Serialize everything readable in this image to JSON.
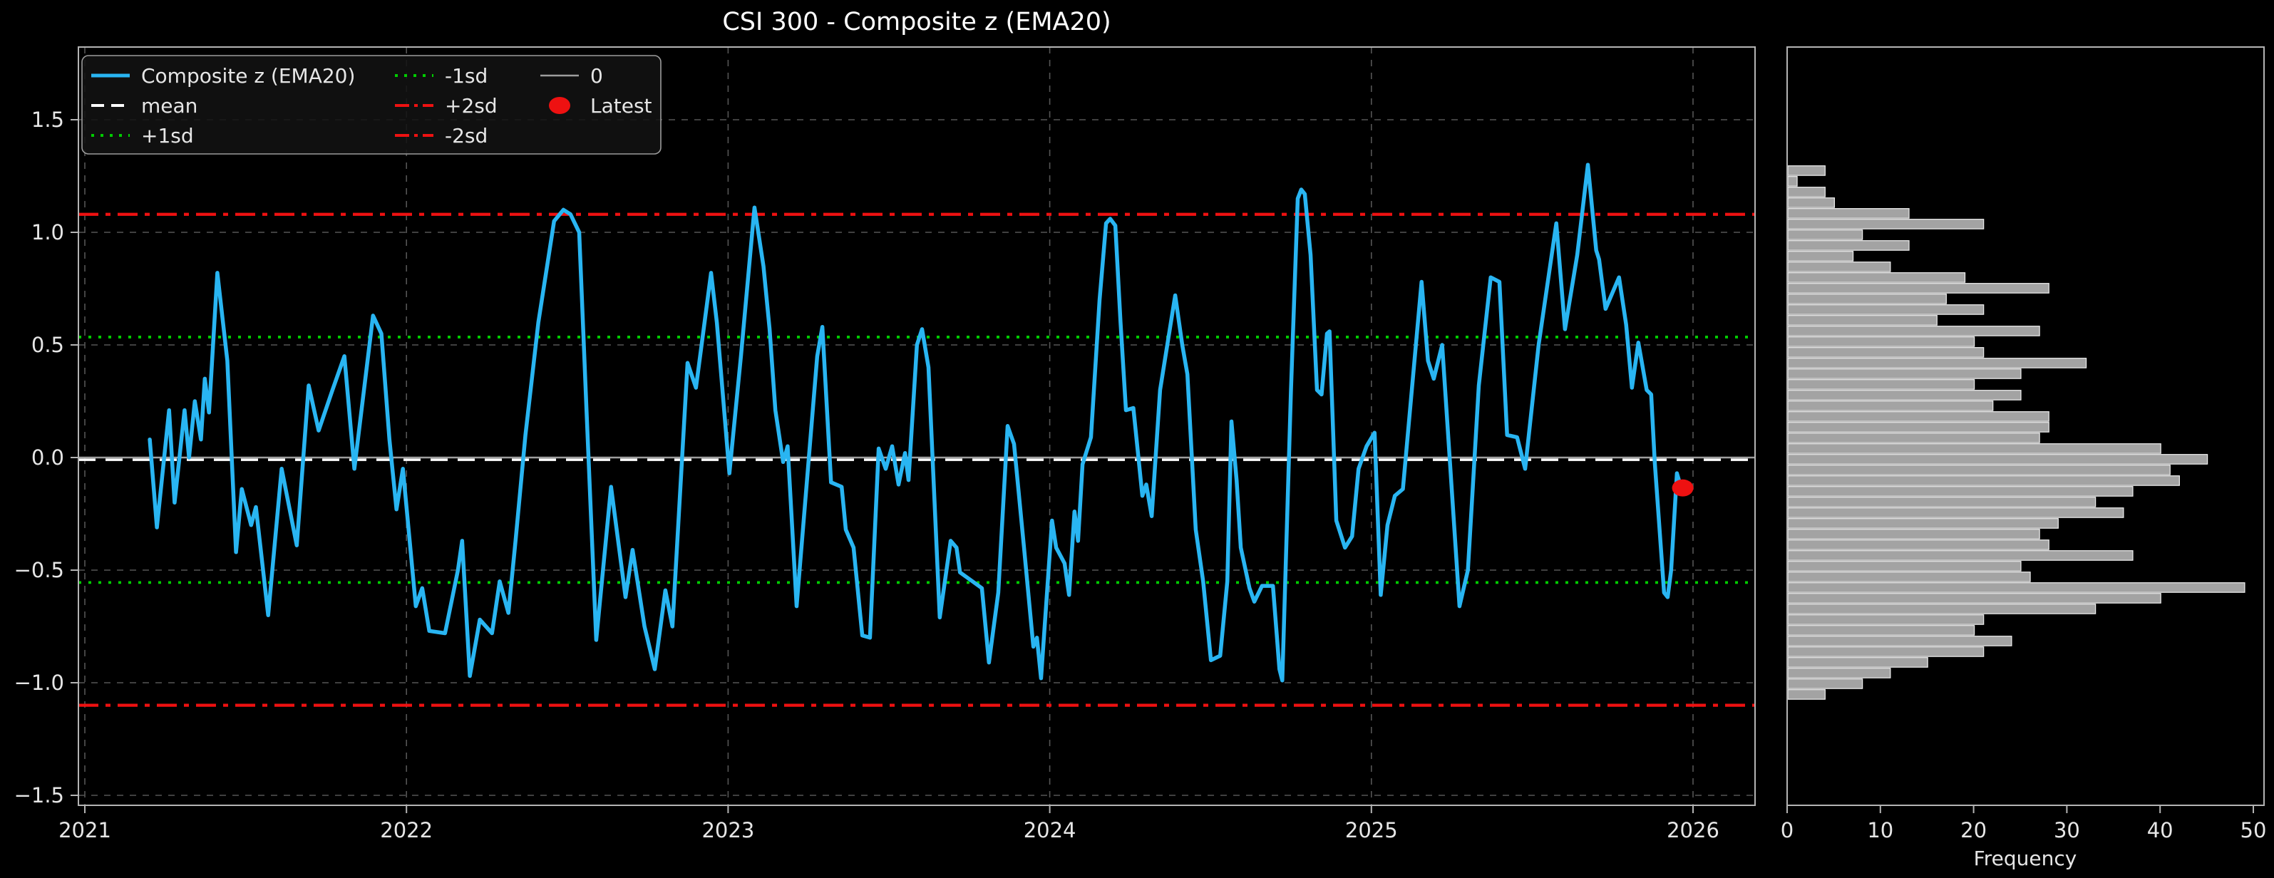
{
  "figure": {
    "title": "CSI 300 - Composite z (EMA20)",
    "background": "#000000",
    "colors": {
      "series_line": "#29b5f2",
      "mean_line": "#ffffff",
      "sd1_line": "#00cc00",
      "sd2_line": "#ee1111",
      "zero_line": "#9e9e9e",
      "latest_marker": "#ee1111",
      "hist_bar_fill": "#a3a3a3",
      "hist_bar_edge": "#efefef",
      "grid": "#555555",
      "spine": "#b4b4b4"
    }
  },
  "legend": {
    "items": [
      {
        "label": "Composite z (EMA20)",
        "color": "#29b5f2",
        "style": "solid",
        "width": 5
      },
      {
        "label": "mean",
        "color": "#ffffff",
        "style": "dashed",
        "width": 4
      },
      {
        "label": "+1sd",
        "color": "#00cc00",
        "style": "dotted",
        "width": 4
      },
      {
        "label": "-1sd",
        "color": "#00cc00",
        "style": "dotted",
        "width": 4
      },
      {
        "label": "+2sd",
        "color": "#ee1111",
        "style": "dashdot",
        "width": 4
      },
      {
        "label": "-2sd",
        "color": "#ee1111",
        "style": "dashdot",
        "width": 4
      },
      {
        "label": "0",
        "color": "#9e9e9e",
        "style": "solid",
        "width": 2.5
      },
      {
        "label": "Latest",
        "color": "#ee1111",
        "style": "marker",
        "width": 0
      }
    ]
  },
  "main_axis": {
    "x_tick_labels": [
      "2021",
      "2022",
      "2023",
      "2024",
      "2025",
      "2026"
    ],
    "y_tick_labels": [
      "1.5",
      "1.0",
      "0.5",
      "0.0",
      "−0.5",
      "−1.0",
      "−1.5"
    ]
  },
  "hist_axis": {
    "x_tick_labels": [
      "0",
      "10",
      "20",
      "30",
      "40",
      "50"
    ],
    "xlabel": "Frequency"
  },
  "chart_data": [
    {
      "type": "line",
      "title": "CSI 300 - Composite z (EMA20)",
      "xlabel": "",
      "ylabel": "",
      "x_ticks": [
        2021,
        2022,
        2023,
        2024,
        2025,
        2026
      ],
      "y_ticks": [
        1.5,
        1.0,
        0.5,
        0.0,
        -0.5,
        -1.0,
        -1.5
      ],
      "xlim": [
        2020.98,
        2026.19
      ],
      "ylim": [
        -1.54,
        1.82
      ],
      "grid": true,
      "legend_position": "upper left",
      "reference_lines": {
        "zero": 0.0,
        "mean": -0.01,
        "plus1sd": 0.535,
        "minus1sd": -0.555,
        "plus2sd": 1.08,
        "minus2sd": -1.1
      },
      "latest": {
        "x": 2025.968,
        "z": -0.135
      },
      "series": {
        "name": "Composite z (EMA20)",
        "points": [
          [
            2021.202,
            0.08
          ],
          [
            2021.224,
            -0.31
          ],
          [
            2021.262,
            0.21
          ],
          [
            2021.279,
            -0.2
          ],
          [
            2021.31,
            0.21
          ],
          [
            2021.324,
            0.0
          ],
          [
            2021.342,
            0.25
          ],
          [
            2021.361,
            0.08
          ],
          [
            2021.373,
            0.35
          ],
          [
            2021.386,
            0.2
          ],
          [
            2021.412,
            0.82
          ],
          [
            2021.443,
            0.43
          ],
          [
            2021.47,
            -0.42
          ],
          [
            2021.488,
            -0.14
          ],
          [
            2021.517,
            -0.3
          ],
          [
            2021.532,
            -0.22
          ],
          [
            2021.57,
            -0.7
          ],
          [
            2021.612,
            -0.05
          ],
          [
            2021.659,
            -0.39
          ],
          [
            2021.696,
            0.32
          ],
          [
            2021.727,
            0.12
          ],
          [
            2021.77,
            0.3
          ],
          [
            2021.807,
            0.45
          ],
          [
            2021.838,
            -0.05
          ],
          [
            2021.896,
            0.63
          ],
          [
            2021.922,
            0.55
          ],
          [
            2021.947,
            0.08
          ],
          [
            2021.969,
            -0.23
          ],
          [
            2021.989,
            -0.05
          ],
          [
            2022.029,
            -0.66
          ],
          [
            2022.049,
            -0.58
          ],
          [
            2022.071,
            -0.77
          ],
          [
            2022.12,
            -0.78
          ],
          [
            2022.16,
            -0.5
          ],
          [
            2022.173,
            -0.37
          ],
          [
            2022.197,
            -0.97
          ],
          [
            2022.228,
            -0.72
          ],
          [
            2022.266,
            -0.78
          ],
          [
            2022.29,
            -0.55
          ],
          [
            2022.317,
            -0.69
          ],
          [
            2022.339,
            -0.37
          ],
          [
            2022.37,
            0.1
          ],
          [
            2022.41,
            0.6
          ],
          [
            2022.459,
            1.05
          ],
          [
            2022.488,
            1.1
          ],
          [
            2022.51,
            1.08
          ],
          [
            2022.537,
            1.0
          ],
          [
            2022.56,
            0.2
          ],
          [
            2022.59,
            -0.81
          ],
          [
            2022.636,
            -0.13
          ],
          [
            2022.681,
            -0.62
          ],
          [
            2022.703,
            -0.41
          ],
          [
            2022.74,
            -0.75
          ],
          [
            2022.772,
            -0.94
          ],
          [
            2022.805,
            -0.59
          ],
          [
            2022.827,
            -0.75
          ],
          [
            2022.874,
            0.42
          ],
          [
            2022.9,
            0.31
          ],
          [
            2022.947,
            0.82
          ],
          [
            2022.965,
            0.6
          ],
          [
            2023.004,
            -0.07
          ],
          [
            2023.04,
            0.45
          ],
          [
            2023.082,
            1.11
          ],
          [
            2023.11,
            0.85
          ],
          [
            2023.129,
            0.57
          ],
          [
            2023.147,
            0.21
          ],
          [
            2023.171,
            -0.02
          ],
          [
            2023.185,
            0.05
          ],
          [
            2023.213,
            -0.66
          ],
          [
            2023.277,
            0.45
          ],
          [
            2023.293,
            0.58
          ],
          [
            2023.32,
            -0.11
          ],
          [
            2023.353,
            -0.13
          ],
          [
            2023.366,
            -0.32
          ],
          [
            2023.39,
            -0.4
          ],
          [
            2023.417,
            -0.79
          ],
          [
            2023.441,
            -0.8
          ],
          [
            2023.468,
            0.04
          ],
          [
            2023.49,
            -0.05
          ],
          [
            2023.51,
            0.05
          ],
          [
            2023.53,
            -0.12
          ],
          [
            2023.55,
            0.02
          ],
          [
            2023.561,
            -0.1
          ],
          [
            2023.587,
            0.5
          ],
          [
            2023.603,
            0.57
          ],
          [
            2023.623,
            0.4
          ],
          [
            2023.658,
            -0.71
          ],
          [
            2023.692,
            -0.37
          ],
          [
            2023.71,
            -0.4
          ],
          [
            2023.721,
            -0.51
          ],
          [
            2023.76,
            -0.55
          ],
          [
            2023.789,
            -0.58
          ],
          [
            2023.811,
            -0.91
          ],
          [
            2023.84,
            -0.6
          ],
          [
            2023.869,
            0.14
          ],
          [
            2023.889,
            0.06
          ],
          [
            2023.92,
            -0.4
          ],
          [
            2023.949,
            -0.84
          ],
          [
            2023.96,
            -0.8
          ],
          [
            2023.973,
            -0.98
          ],
          [
            2024.007,
            -0.28
          ],
          [
            2024.02,
            -0.4
          ],
          [
            2024.046,
            -0.47
          ],
          [
            2024.06,
            -0.61
          ],
          [
            2024.077,
            -0.24
          ],
          [
            2024.088,
            -0.37
          ],
          [
            2024.102,
            -0.03
          ],
          [
            2024.128,
            0.09
          ],
          [
            2024.155,
            0.7
          ],
          [
            2024.175,
            1.04
          ],
          [
            2024.188,
            1.06
          ],
          [
            2024.204,
            1.03
          ],
          [
            2024.22,
            0.6
          ],
          [
            2024.237,
            0.21
          ],
          [
            2024.26,
            0.22
          ],
          [
            2024.288,
            -0.17
          ],
          [
            2024.3,
            -0.12
          ],
          [
            2024.317,
            -0.26
          ],
          [
            2024.343,
            0.3
          ],
          [
            2024.39,
            0.72
          ],
          [
            2024.412,
            0.5
          ],
          [
            2024.428,
            0.37
          ],
          [
            2024.454,
            -0.32
          ],
          [
            2024.477,
            -0.55
          ],
          [
            2024.501,
            -0.9
          ],
          [
            2024.53,
            -0.88
          ],
          [
            2024.552,
            -0.55
          ],
          [
            2024.565,
            0.16
          ],
          [
            2024.581,
            -0.1
          ],
          [
            2024.594,
            -0.4
          ],
          [
            2024.621,
            -0.58
          ],
          [
            2024.636,
            -0.64
          ],
          [
            2024.66,
            -0.57
          ],
          [
            2024.694,
            -0.57
          ],
          [
            2024.714,
            -0.94
          ],
          [
            2024.723,
            -0.99
          ],
          [
            2024.75,
            0.3
          ],
          [
            2024.771,
            1.15
          ],
          [
            2024.782,
            1.19
          ],
          [
            2024.793,
            1.17
          ],
          [
            2024.811,
            0.9
          ],
          [
            2024.831,
            0.3
          ],
          [
            2024.845,
            0.28
          ],
          [
            2024.862,
            0.55
          ],
          [
            2024.87,
            0.56
          ],
          [
            2024.891,
            -0.28
          ],
          [
            2024.918,
            -0.4
          ],
          [
            2024.94,
            -0.35
          ],
          [
            2024.96,
            -0.05
          ],
          [
            2024.985,
            0.05
          ],
          [
            2025.01,
            0.11
          ],
          [
            2025.029,
            -0.61
          ],
          [
            2025.05,
            -0.3
          ],
          [
            2025.073,
            -0.17
          ],
          [
            2025.098,
            -0.14
          ],
          [
            2025.156,
            0.78
          ],
          [
            2025.176,
            0.43
          ],
          [
            2025.194,
            0.35
          ],
          [
            2025.22,
            0.5
          ],
          [
            2025.274,
            -0.66
          ],
          [
            2025.3,
            -0.5
          ],
          [
            2025.334,
            0.32
          ],
          [
            2025.371,
            0.8
          ],
          [
            2025.398,
            0.78
          ],
          [
            2025.422,
            0.1
          ],
          [
            2025.453,
            0.09
          ],
          [
            2025.478,
            -0.05
          ],
          [
            2025.52,
            0.5
          ],
          [
            2025.575,
            1.04
          ],
          [
            2025.602,
            0.57
          ],
          [
            2025.64,
            0.9
          ],
          [
            2025.673,
            1.3
          ],
          [
            2025.699,
            0.92
          ],
          [
            2025.708,
            0.88
          ],
          [
            2025.728,
            0.66
          ],
          [
            2025.77,
            0.8
          ],
          [
            2025.792,
            0.59
          ],
          [
            2025.81,
            0.31
          ],
          [
            2025.83,
            0.51
          ],
          [
            2025.856,
            0.3
          ],
          [
            2025.87,
            0.28
          ],
          [
            2025.881,
            -0.02
          ],
          [
            2025.91,
            -0.6
          ],
          [
            2025.921,
            -0.62
          ],
          [
            2025.932,
            -0.5
          ],
          [
            2025.95,
            -0.07
          ],
          [
            2025.962,
            -0.13
          ]
        ]
      }
    },
    {
      "type": "bar",
      "orientation": "horizontal",
      "xlabel": "Frequency",
      "x_ticks": [
        0,
        10,
        20,
        30,
        40,
        50
      ],
      "xlim": [
        0,
        51
      ],
      "bins": {
        "z_start": 1.274,
        "z_step": -0.04747,
        "bin_width": 0.0475
      },
      "values": [
        4,
        1,
        4,
        5,
        13,
        21,
        8,
        13,
        7,
        11,
        19,
        28,
        17,
        21,
        16,
        27,
        20,
        21,
        32,
        25,
        20,
        25,
        22,
        28,
        28,
        27,
        40,
        45,
        41,
        42,
        37,
        33,
        36,
        29,
        27,
        28,
        37,
        25,
        26,
        49,
        40,
        33,
        21,
        20,
        24,
        21,
        15,
        11,
        8,
        4
      ]
    }
  ]
}
